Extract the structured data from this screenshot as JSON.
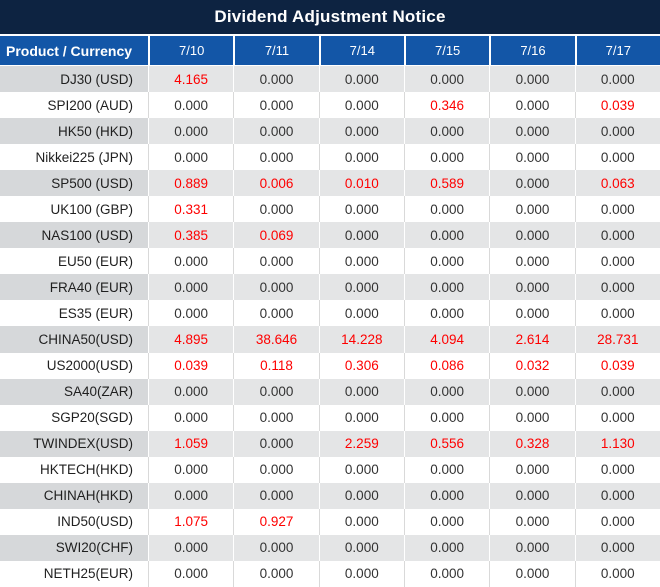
{
  "chart_data": {
    "type": "table",
    "title": "Dividend Adjustment Notice",
    "columns": [
      "Product / Currency",
      "7/10",
      "7/11",
      "7/14",
      "7/15",
      "7/16",
      "7/17"
    ],
    "rows": [
      {
        "product": "DJ30 (USD)",
        "values": [
          "4.165",
          "0.000",
          "0.000",
          "0.000",
          "0.000",
          "0.000"
        ]
      },
      {
        "product": "SPI200 (AUD)",
        "values": [
          "0.000",
          "0.000",
          "0.000",
          "0.346",
          "0.000",
          "0.039"
        ]
      },
      {
        "product": "HK50 (HKD)",
        "values": [
          "0.000",
          "0.000",
          "0.000",
          "0.000",
          "0.000",
          "0.000"
        ]
      },
      {
        "product": "Nikkei225 (JPN)",
        "values": [
          "0.000",
          "0.000",
          "0.000",
          "0.000",
          "0.000",
          "0.000"
        ]
      },
      {
        "product": "SP500 (USD)",
        "values": [
          "0.889",
          "0.006",
          "0.010",
          "0.589",
          "0.000",
          "0.063"
        ]
      },
      {
        "product": "UK100 (GBP)",
        "values": [
          "0.331",
          "0.000",
          "0.000",
          "0.000",
          "0.000",
          "0.000"
        ]
      },
      {
        "product": "NAS100 (USD)",
        "values": [
          "0.385",
          "0.069",
          "0.000",
          "0.000",
          "0.000",
          "0.000"
        ]
      },
      {
        "product": "EU50 (EUR)",
        "values": [
          "0.000",
          "0.000",
          "0.000",
          "0.000",
          "0.000",
          "0.000"
        ]
      },
      {
        "product": "FRA40 (EUR)",
        "values": [
          "0.000",
          "0.000",
          "0.000",
          "0.000",
          "0.000",
          "0.000"
        ]
      },
      {
        "product": "ES35 (EUR)",
        "values": [
          "0.000",
          "0.000",
          "0.000",
          "0.000",
          "0.000",
          "0.000"
        ]
      },
      {
        "product": "CHINA50(USD)",
        "values": [
          "4.895",
          "38.646",
          "14.228",
          "4.094",
          "2.614",
          "28.731"
        ]
      },
      {
        "product": "US2000(USD)",
        "values": [
          "0.039",
          "0.118",
          "0.306",
          "0.086",
          "0.032",
          "0.039"
        ]
      },
      {
        "product": "SA40(ZAR)",
        "values": [
          "0.000",
          "0.000",
          "0.000",
          "0.000",
          "0.000",
          "0.000"
        ]
      },
      {
        "product": "SGP20(SGD)",
        "values": [
          "0.000",
          "0.000",
          "0.000",
          "0.000",
          "0.000",
          "0.000"
        ]
      },
      {
        "product": "TWINDEX(USD)",
        "values": [
          "1.059",
          "0.000",
          "2.259",
          "0.556",
          "0.328",
          "1.130"
        ]
      },
      {
        "product": "HKTECH(HKD)",
        "values": [
          "0.000",
          "0.000",
          "0.000",
          "0.000",
          "0.000",
          "0.000"
        ]
      },
      {
        "product": "CHINAH(HKD)",
        "values": [
          "0.000",
          "0.000",
          "0.000",
          "0.000",
          "0.000",
          "0.000"
        ]
      },
      {
        "product": "IND50(USD)",
        "values": [
          "1.075",
          "0.927",
          "0.000",
          "0.000",
          "0.000",
          "0.000"
        ]
      },
      {
        "product": "SWI20(CHF)",
        "values": [
          "0.000",
          "0.000",
          "0.000",
          "0.000",
          "0.000",
          "0.000"
        ]
      },
      {
        "product": "NETH25(EUR)",
        "values": [
          "0.000",
          "0.000",
          "0.000",
          "0.000",
          "0.000",
          "0.000"
        ]
      }
    ],
    "layout_hints": {
      "striped_rows": "odd rows shaded gray, even rows white",
      "value_alignment": "center",
      "product_alignment": "right",
      "nonzero_values_highlighted_red": true
    }
  },
  "colors": {
    "title_bar_bg": "#0d2341",
    "header_bg": "#1356a7",
    "header_text": "#ffffff",
    "alt_label_bg": "#d6d8da",
    "alt_value_bg": "#e4e5e6",
    "row_bg": "#ffffff",
    "grid_line": "#d9d9d9",
    "label_text": "#1f1f1f",
    "value_text": "#333333",
    "highlight_text": "#fe0000"
  }
}
